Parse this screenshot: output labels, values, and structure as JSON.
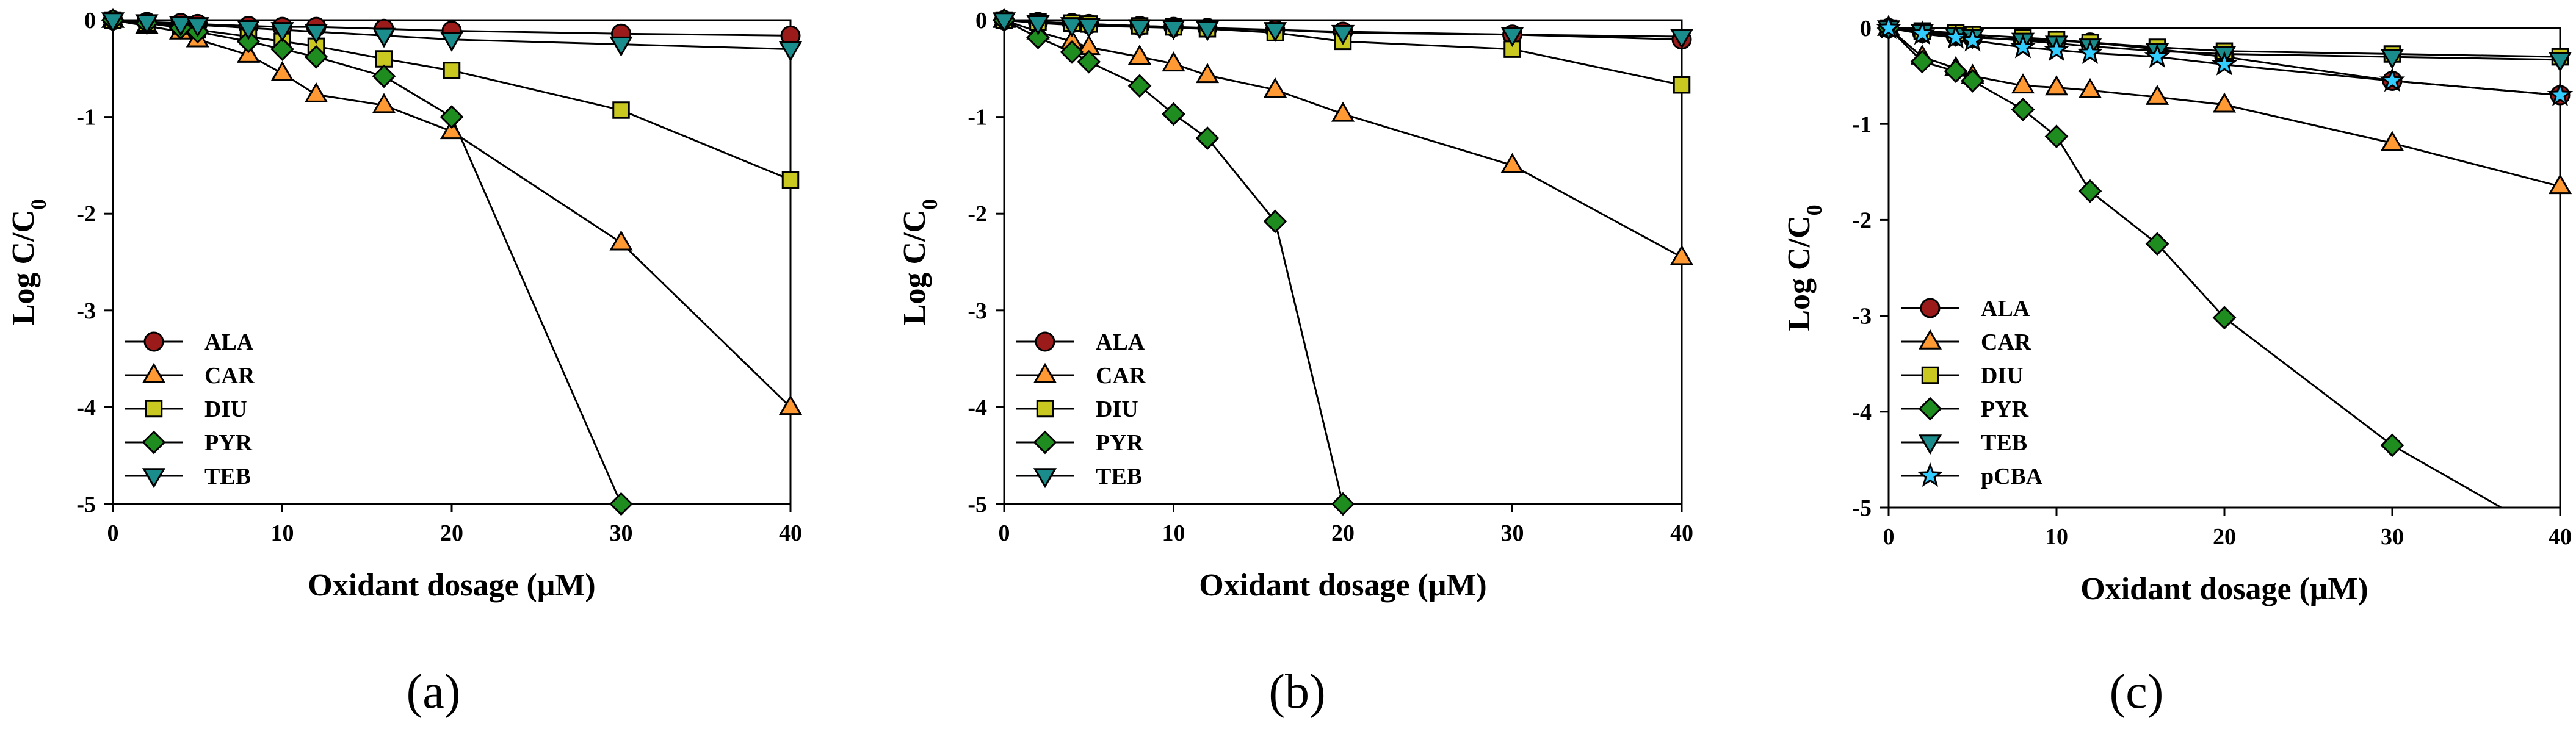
{
  "chart_data": [
    {
      "type": "line",
      "panel_label": "(a)",
      "xlabel": "Oxidant dosage (μM)",
      "ylabel": "Log C/C",
      "ylabel_subscript": "0",
      "xlim": [
        0,
        40
      ],
      "ylim": [
        -5,
        0
      ],
      "xticks": [
        0,
        10,
        20,
        30,
        40
      ],
      "yticks": [
        0,
        -1,
        -2,
        -3,
        -4,
        -5
      ],
      "legend_position": "bottom-left",
      "series": [
        {
          "name": "ALA",
          "marker": "circle",
          "color": "#9b1b1b",
          "x": [
            0,
            2,
            4,
            5,
            8,
            10,
            12,
            16,
            20,
            30,
            40
          ],
          "y": [
            0,
            -0.02,
            -0.03,
            -0.04,
            -0.06,
            -0.07,
            -0.07,
            -0.09,
            -0.11,
            -0.14,
            -0.16
          ]
        },
        {
          "name": "CAR",
          "marker": "triangle-up",
          "color": "#ff9933",
          "x": [
            0,
            2,
            4,
            5,
            8,
            10,
            12,
            16,
            20,
            30,
            40
          ],
          "y": [
            0,
            -0.06,
            -0.12,
            -0.2,
            -0.36,
            -0.55,
            -0.77,
            -0.88,
            -1.15,
            -2.3,
            -4.0
          ]
        },
        {
          "name": "DIU",
          "marker": "square",
          "color": "#c8c820",
          "x": [
            0,
            2,
            4,
            5,
            8,
            10,
            12,
            16,
            20,
            30,
            40
          ],
          "y": [
            0,
            -0.03,
            -0.06,
            -0.1,
            -0.17,
            -0.22,
            -0.27,
            -0.4,
            -0.52,
            -0.93,
            -1.65
          ]
        },
        {
          "name": "PYR",
          "marker": "diamond",
          "color": "#1e8c1e",
          "x": [
            0,
            2,
            4,
            5,
            8,
            10,
            12,
            16,
            20,
            30
          ],
          "y": [
            0,
            -0.03,
            -0.08,
            -0.12,
            -0.22,
            -0.3,
            -0.38,
            -0.58,
            -1.0,
            -5.0
          ]
        },
        {
          "name": "TEB",
          "marker": "triangle-down",
          "color": "#1a8c8c",
          "x": [
            0,
            2,
            4,
            5,
            8,
            10,
            12,
            16,
            20,
            30,
            40
          ],
          "y": [
            0,
            -0.02,
            -0.04,
            -0.05,
            -0.08,
            -0.1,
            -0.12,
            -0.16,
            -0.2,
            -0.25,
            -0.3
          ]
        }
      ]
    },
    {
      "type": "line",
      "panel_label": "(b)",
      "xlabel": "Oxidant dosage (μM)",
      "ylabel": "Log C/C",
      "ylabel_subscript": "0",
      "xlim": [
        0,
        40
      ],
      "ylim": [
        -5,
        0
      ],
      "xticks": [
        0,
        10,
        20,
        30,
        40
      ],
      "yticks": [
        0,
        -1,
        -2,
        -3,
        -4,
        -5
      ],
      "legend_position": "bottom-left",
      "series": [
        {
          "name": "ALA",
          "marker": "circle",
          "color": "#9b1b1b",
          "x": [
            0,
            2,
            4,
            5,
            8,
            10,
            12,
            16,
            20,
            30,
            40
          ],
          "y": [
            0,
            -0.02,
            -0.03,
            -0.04,
            -0.06,
            -0.07,
            -0.08,
            -0.1,
            -0.12,
            -0.15,
            -0.2
          ]
        },
        {
          "name": "CAR",
          "marker": "triangle-up",
          "color": "#ff9933",
          "x": [
            0,
            2,
            4,
            5,
            8,
            10,
            12,
            16,
            20,
            30,
            40
          ],
          "y": [
            0,
            -0.12,
            -0.22,
            -0.28,
            -0.38,
            -0.45,
            -0.57,
            -0.72,
            -0.97,
            -1.5,
            -2.45
          ]
        },
        {
          "name": "DIU",
          "marker": "square",
          "color": "#c8c820",
          "x": [
            0,
            2,
            4,
            5,
            8,
            10,
            12,
            16,
            20,
            30,
            40
          ],
          "y": [
            0,
            -0.02,
            -0.03,
            -0.04,
            -0.06,
            -0.07,
            -0.09,
            -0.13,
            -0.22,
            -0.3,
            -0.67
          ]
        },
        {
          "name": "PYR",
          "marker": "diamond",
          "color": "#1e8c1e",
          "x": [
            0,
            2,
            4,
            5,
            8,
            10,
            12,
            16,
            20
          ],
          "y": [
            0,
            -0.18,
            -0.33,
            -0.43,
            -0.68,
            -0.97,
            -1.22,
            -2.08,
            -5.0
          ]
        },
        {
          "name": "TEB",
          "marker": "triangle-down",
          "color": "#1a8c8c",
          "x": [
            0,
            2,
            4,
            5,
            8,
            10,
            12,
            16,
            20,
            30,
            40
          ],
          "y": [
            0,
            -0.03,
            -0.05,
            -0.06,
            -0.07,
            -0.08,
            -0.09,
            -0.1,
            -0.13,
            -0.15,
            -0.17
          ]
        }
      ]
    },
    {
      "type": "line",
      "panel_label": "(c)",
      "xlabel": "Oxidant dosage (μM)",
      "ylabel": "Log C/C",
      "ylabel_subscript": "0",
      "xlim": [
        0,
        40
      ],
      "ylim": [
        -5,
        0
      ],
      "xticks": [
        0,
        10,
        20,
        30,
        40
      ],
      "yticks": [
        0,
        -1,
        -2,
        -3,
        -4,
        -5
      ],
      "legend_position": "bottom-left",
      "series": [
        {
          "name": "ALA",
          "marker": "circle",
          "color": "#9b1b1b",
          "x": [
            0,
            2,
            4,
            5,
            8,
            10,
            12,
            16,
            20,
            30,
            40
          ],
          "y": [
            0,
            -0.05,
            -0.08,
            -0.1,
            -0.12,
            -0.13,
            -0.15,
            -0.22,
            -0.3,
            -0.55,
            -0.7
          ]
        },
        {
          "name": "CAR",
          "marker": "triangle-up",
          "color": "#ff9933",
          "x": [
            0,
            2,
            4,
            5,
            8,
            10,
            12,
            16,
            20,
            30,
            40
          ],
          "y": [
            0,
            -0.3,
            -0.42,
            -0.5,
            -0.6,
            -0.62,
            -0.65,
            -0.72,
            -0.8,
            -1.2,
            -1.65
          ]
        },
        {
          "name": "DIU",
          "marker": "square",
          "color": "#c8c820",
          "x": [
            0,
            2,
            4,
            5,
            8,
            10,
            12,
            16,
            20,
            30,
            40
          ],
          "y": [
            0,
            -0.03,
            -0.05,
            -0.07,
            -0.1,
            -0.12,
            -0.15,
            -0.2,
            -0.24,
            -0.27,
            -0.3
          ]
        },
        {
          "name": "PYR",
          "marker": "diamond",
          "color": "#1e8c1e",
          "x": [
            0,
            2,
            4,
            5,
            8,
            10,
            12,
            16,
            20,
            30,
            36.5
          ],
          "y": [
            0,
            -0.35,
            -0.45,
            -0.55,
            -0.85,
            -1.13,
            -1.7,
            -2.25,
            -3.02,
            -4.35,
            -5.0
          ]
        },
        {
          "name": "TEB",
          "marker": "triangle-down",
          "color": "#1a8c8c",
          "x": [
            0,
            2,
            4,
            5,
            8,
            10,
            12,
            16,
            20,
            30,
            40
          ],
          "y": [
            0,
            -0.04,
            -0.07,
            -0.09,
            -0.13,
            -0.16,
            -0.19,
            -0.24,
            -0.27,
            -0.3,
            -0.33
          ]
        },
        {
          "name": "pCBA",
          "marker": "star",
          "color": "#33ccff",
          "x": [
            0,
            2,
            4,
            5,
            8,
            10,
            12,
            16,
            20,
            30,
            40
          ],
          "y": [
            0,
            -0.06,
            -0.1,
            -0.13,
            -0.2,
            -0.23,
            -0.26,
            -0.3,
            -0.38,
            -0.55,
            -0.7
          ]
        }
      ]
    }
  ]
}
